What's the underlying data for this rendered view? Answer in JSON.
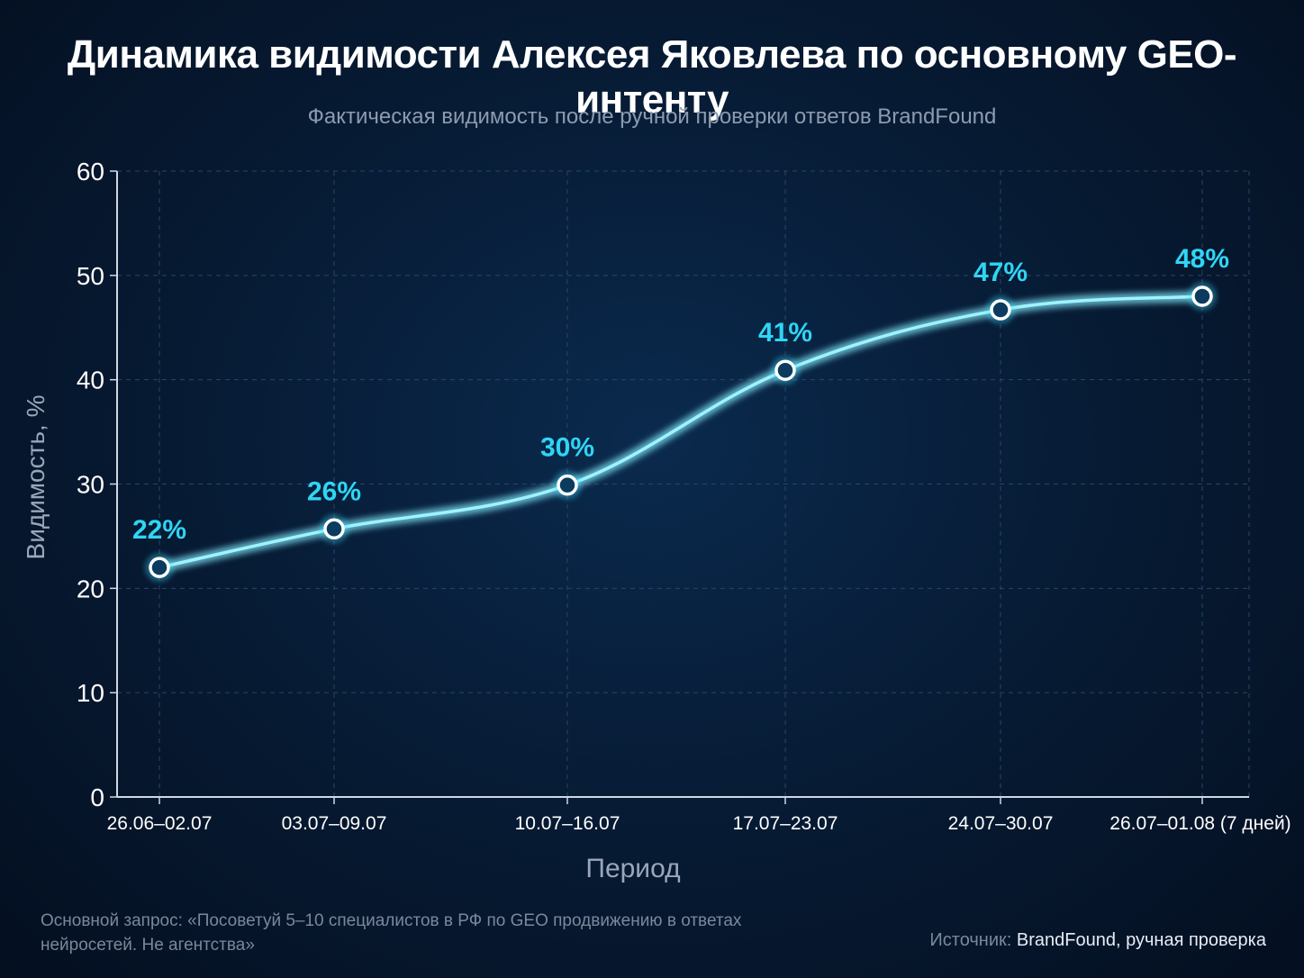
{
  "header": {
    "title": "Динамика видимости Алексея Яковлева по основному GEO-интенту",
    "subtitle": "Фактическая видимость после ручной проверки ответов BrandFound"
  },
  "chart_data": {
    "type": "line",
    "categories": [
      "26.06–02.07",
      "03.07–09.07",
      "10.07–16.07",
      "17.07–23.07",
      "24.07–30.07",
      "26.07–01.08 (7 дней)"
    ],
    "values": [
      22,
      25.7,
      29.9,
      40.9,
      46.7,
      48
    ],
    "data_labels": [
      "22%",
      "26%",
      "30%",
      "41%",
      "47%",
      "48%"
    ],
    "xlabel": "Период",
    "ylabel": "Видимость, %",
    "ylim": [
      0,
      60
    ],
    "yticks": [
      0,
      10,
      20,
      30,
      40,
      50,
      60
    ],
    "grid": true,
    "colors": {
      "line": "#3fe0ff",
      "label": "#2fd5f5",
      "marker_fill": "#0b3b5e"
    }
  },
  "footer": {
    "note": "Основной запрос: «Посоветуй 5–10 специалистов в РФ по GEO продвижению в ответах нейросетей. Не агентства»",
    "source_label": "Источник:",
    "source_value": "BrandFound, ручная проверка"
  }
}
